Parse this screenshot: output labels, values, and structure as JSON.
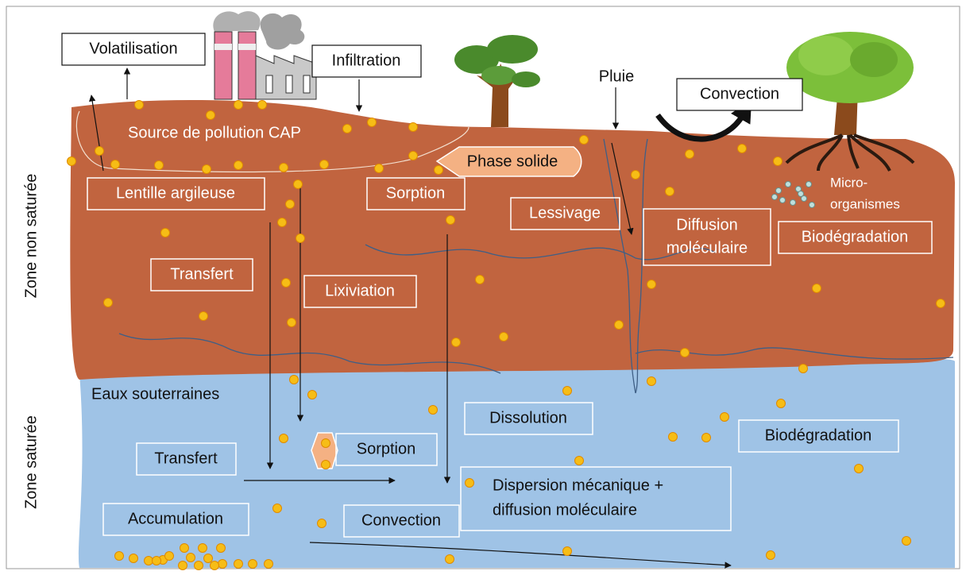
{
  "top": {
    "volatilisation": "Volatilisation",
    "infiltration": "Infiltration",
    "pluie": "Pluie",
    "convection": "Convection"
  },
  "unsaturated": {
    "zone": "Zone non saturée",
    "source": "Source de pollution CAP",
    "phase_solide": "Phase solide",
    "lentille": "Lentille argileuse",
    "sorption": "Sorption",
    "lessivage": "Lessivage",
    "diffusion": [
      "Diffusion",
      "moléculaire"
    ],
    "microorganismes": [
      "Micro-",
      "organismes"
    ],
    "biodegradation": "Biodégradation",
    "transfert": "Transfert",
    "lixiviation": "Lixiviation"
  },
  "saturated": {
    "zone": "Zone saturée",
    "eaux": "Eaux souterraines",
    "dissolution": "Dissolution",
    "biodegradation": "Biodégradation",
    "sorption": "Sorption",
    "transfert": "Transfert",
    "dispersion": [
      "Dispersion mécanique +",
      "diffusion moléculaire"
    ],
    "accumulation": "Accumulation",
    "convection": "Convection"
  }
}
